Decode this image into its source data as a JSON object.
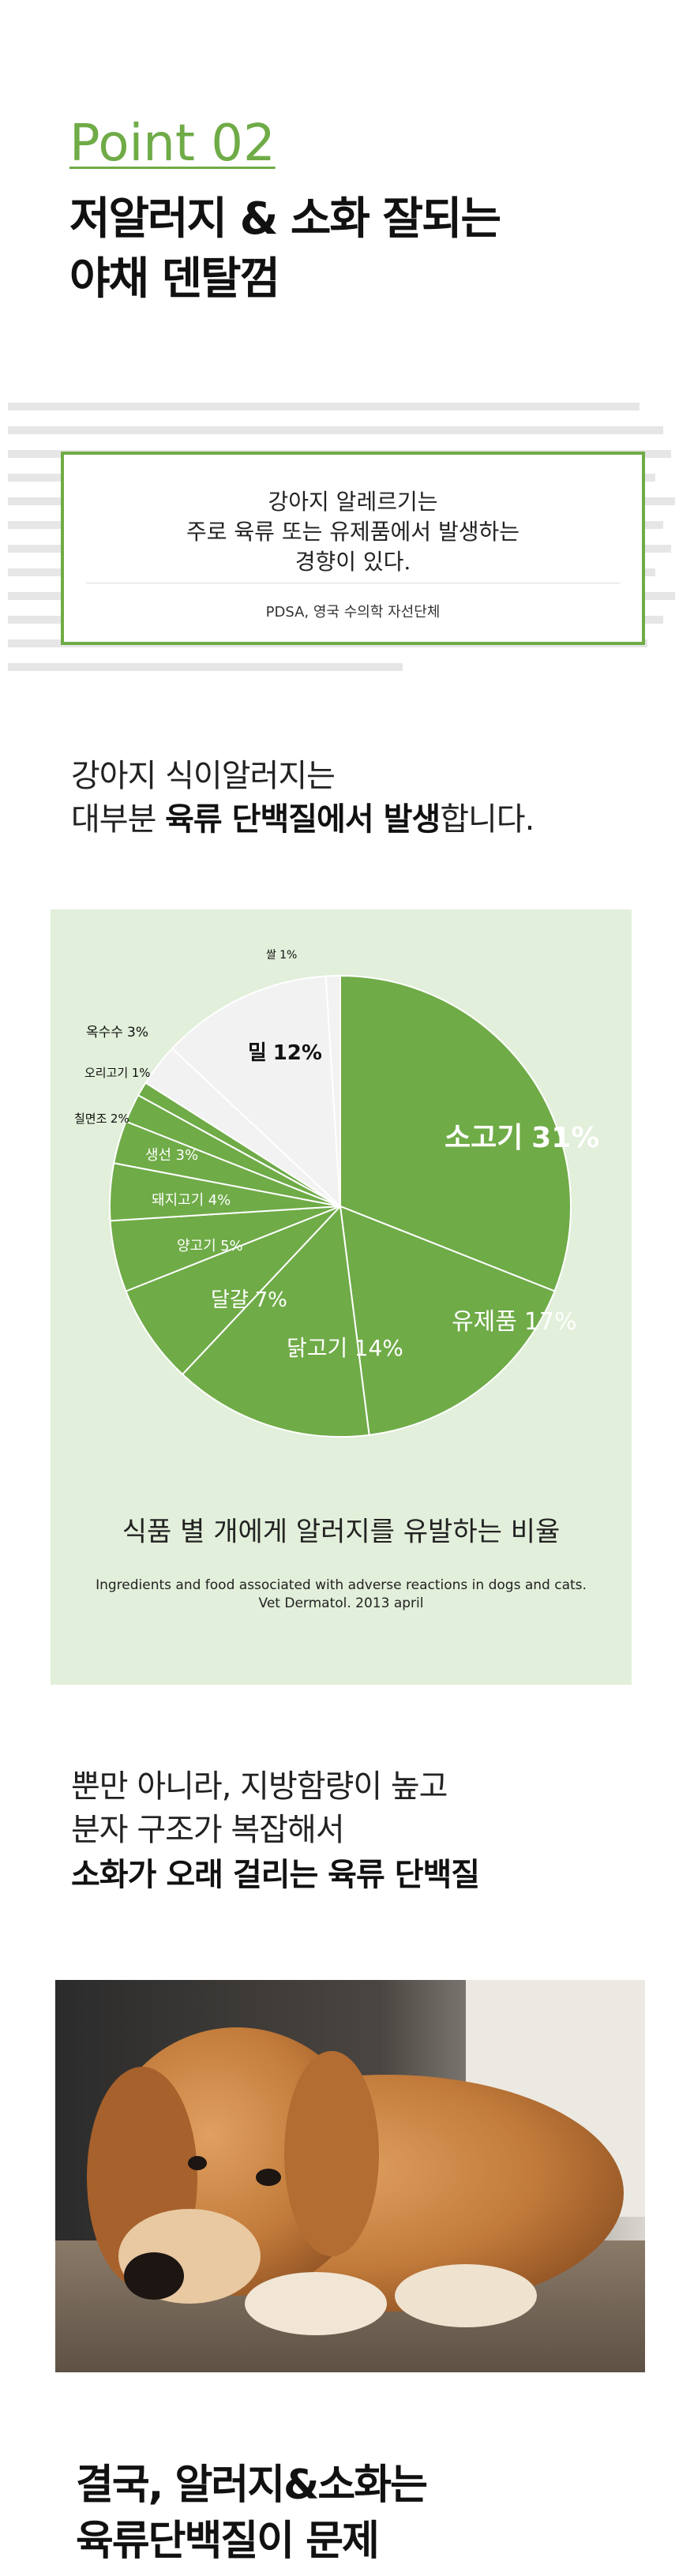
{
  "header": {
    "eyebrow": "Point 02",
    "title_lines": [
      "저알러지 & 소화 잘되는",
      "야채 덴탈껌"
    ]
  },
  "quote": {
    "lines": [
      "강아지 알레르기는",
      "주로 육류 또는 유제품에서 발생하는",
      "경향이 있다."
    ],
    "source": "PDSA, 영국 수의학 자선단체"
  },
  "intro": {
    "line1": "강아지 식이알러지는",
    "line2": [
      "대부분 ",
      "육류 단백질에서 발생",
      "합니다."
    ]
  },
  "chart_data": {
    "type": "pie",
    "title": "식품 별 개에게 알러지를 유발하는 비율",
    "source": [
      "Ingredients and food associated with adverse reactions in dogs and cats.",
      "Vet Dermatol. 2013 april"
    ],
    "categories": [
      "소고기",
      "유제품",
      "닭고기",
      "달걀",
      "양고기",
      "돼지고기",
      "생선",
      "칠면조",
      "오리고기",
      "옥수수",
      "밀",
      "쌀"
    ],
    "values": [
      31,
      17,
      14,
      7,
      5,
      4,
      3,
      2,
      1,
      3,
      12,
      1
    ],
    "value_labels": [
      "31%",
      "17%",
      "14%",
      "7%",
      "5%",
      "4%",
      "3%",
      "2%",
      "1%",
      "3%",
      "12%",
      "1%"
    ],
    "colors": [
      "#6fab47",
      "#6fab47",
      "#6fab47",
      "#6fab47",
      "#6fab47",
      "#6fab47",
      "#6fab47",
      "#6fab47",
      "#6fab47",
      "#f2f2f2",
      "#f2f2f2",
      "#f2f2f2"
    ]
  },
  "detail": {
    "lines": [
      "뿐만 아니라, 지방함량이 높고",
      "분자 구조가 복잡해서",
      "소화가 오래 걸리는 육류 단백질"
    ]
  },
  "conclusion": {
    "lines": [
      "결국, 알러지&소화는",
      "육류단백질이 문제"
    ]
  }
}
